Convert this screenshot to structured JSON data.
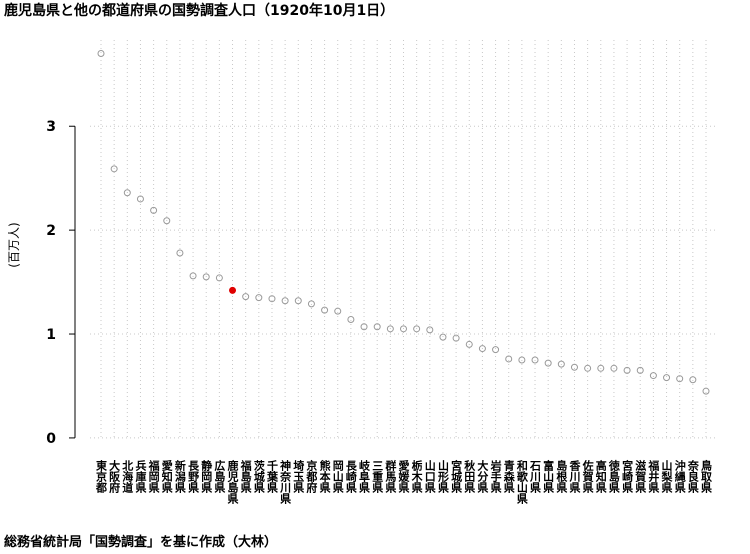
{
  "chart_data": {
    "type": "dot",
    "title": "鹿児島県と他の都道府県の国勢調査人口（1920年10月1日）",
    "ylabel": "(百万人)",
    "caption": "総務省統計局「国勢調査」を基に作成（大林）",
    "categories": [
      "東京都",
      "大阪府",
      "北海道",
      "兵庫県",
      "福岡県",
      "愛知県",
      "新潟県",
      "長野県",
      "静岡県",
      "広島県",
      "鹿児島県",
      "福島県",
      "茨城県",
      "千葉県",
      "神奈川県",
      "埼玉県",
      "京都府",
      "熊本県",
      "岡山県",
      "長崎県",
      "岐阜県",
      "三重県",
      "群馬県",
      "愛媛県",
      "栃木県",
      "山口県",
      "山形県",
      "宮城県",
      "秋田県",
      "大分県",
      "岩手県",
      "青森県",
      "和歌山県",
      "石川県",
      "富山県",
      "島根県",
      "香川県",
      "佐賀県",
      "高知県",
      "徳島県",
      "宮崎県",
      "滋賀県",
      "福井県",
      "山梨県",
      "沖縄県",
      "奈良県",
      "鳥取県"
    ],
    "values": [
      3.7,
      2.59,
      2.36,
      2.3,
      2.19,
      2.09,
      1.78,
      1.56,
      1.55,
      1.54,
      1.42,
      1.36,
      1.35,
      1.34,
      1.32,
      1.32,
      1.29,
      1.23,
      1.22,
      1.14,
      1.07,
      1.07,
      1.05,
      1.05,
      1.05,
      1.04,
      0.97,
      0.96,
      0.9,
      0.86,
      0.85,
      0.76,
      0.75,
      0.75,
      0.72,
      0.71,
      0.68,
      0.67,
      0.67,
      0.67,
      0.65,
      0.65,
      0.6,
      0.58,
      0.57,
      0.56,
      0.45
    ],
    "color": "#999999",
    "highlight": "鹿児島県",
    "highlight_color": "#e00000",
    "ylim": [
      -0.02,
      3.83
    ],
    "yticks": [
      0,
      1,
      2,
      3
    ],
    "grid": true
  }
}
